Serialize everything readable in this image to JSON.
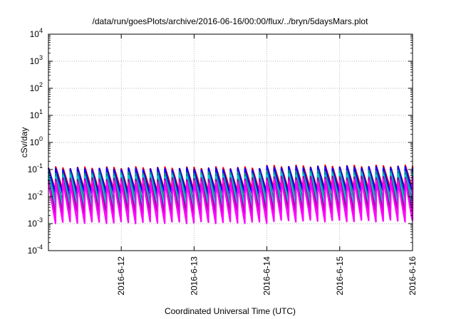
{
  "chart_data": {
    "type": "line",
    "title": "/data/run/goesPlots/archive/2016-06-16/00:00/flux/../bryn/5daysMars.plot",
    "xlabel": "Coordinated Universal Time (UTC)",
    "ylabel": "cSv/day",
    "yscale": "log",
    "ylim": [
      0.0001,
      10000
    ],
    "xlim": [
      0,
      5
    ],
    "x_unit": "days",
    "x_ticks": [
      {
        "value": 1,
        "label": "2016-6-12"
      },
      {
        "value": 2,
        "label": "2016-6-13"
      },
      {
        "value": 3,
        "label": "2016-6-14"
      },
      {
        "value": 4,
        "label": "2016-6-15"
      },
      {
        "value": 5,
        "label": "2016-6-16"
      }
    ],
    "y_ticks": [
      {
        "value": 0.0001,
        "base": "10",
        "exp": "-4"
      },
      {
        "value": 0.001,
        "base": "10",
        "exp": "-3"
      },
      {
        "value": 0.01,
        "base": "10",
        "exp": "-2"
      },
      {
        "value": 0.1,
        "base": "10",
        "exp": "-1"
      },
      {
        "value": 1,
        "base": "10",
        "exp": "0"
      },
      {
        "value": 10,
        "base": "10",
        "exp": "1"
      },
      {
        "value": 100,
        "base": "10",
        "exp": "2"
      },
      {
        "value": 1000,
        "base": "10",
        "exp": "3"
      },
      {
        "value": 10000,
        "base": "10",
        "exp": "4"
      }
    ],
    "grid": true,
    "sawtooth_period_days": 0.1,
    "cycles": 50,
    "envelope": [
      {
        "from_day": 0,
        "to_day": 3,
        "peak_mult": 1.0
      },
      {
        "from_day": 3,
        "to_day": 5,
        "peak_mult": 1.15
      }
    ],
    "series": [
      {
        "color": "#ff0000",
        "peak": 0.115,
        "trough": 0.016
      },
      {
        "color": "#0000ff",
        "peak": 0.105,
        "trough": 0.012
      },
      {
        "color": "#008b8b",
        "peak": 0.075,
        "trough": 0.0065
      },
      {
        "color": "#00cccc",
        "peak": 0.058,
        "trough": 0.0042
      },
      {
        "color": "#a000a0",
        "peak": 0.045,
        "trough": 0.0024
      },
      {
        "color": "#ff00ff",
        "peak": 0.035,
        "trough": 0.0011
      }
    ]
  }
}
